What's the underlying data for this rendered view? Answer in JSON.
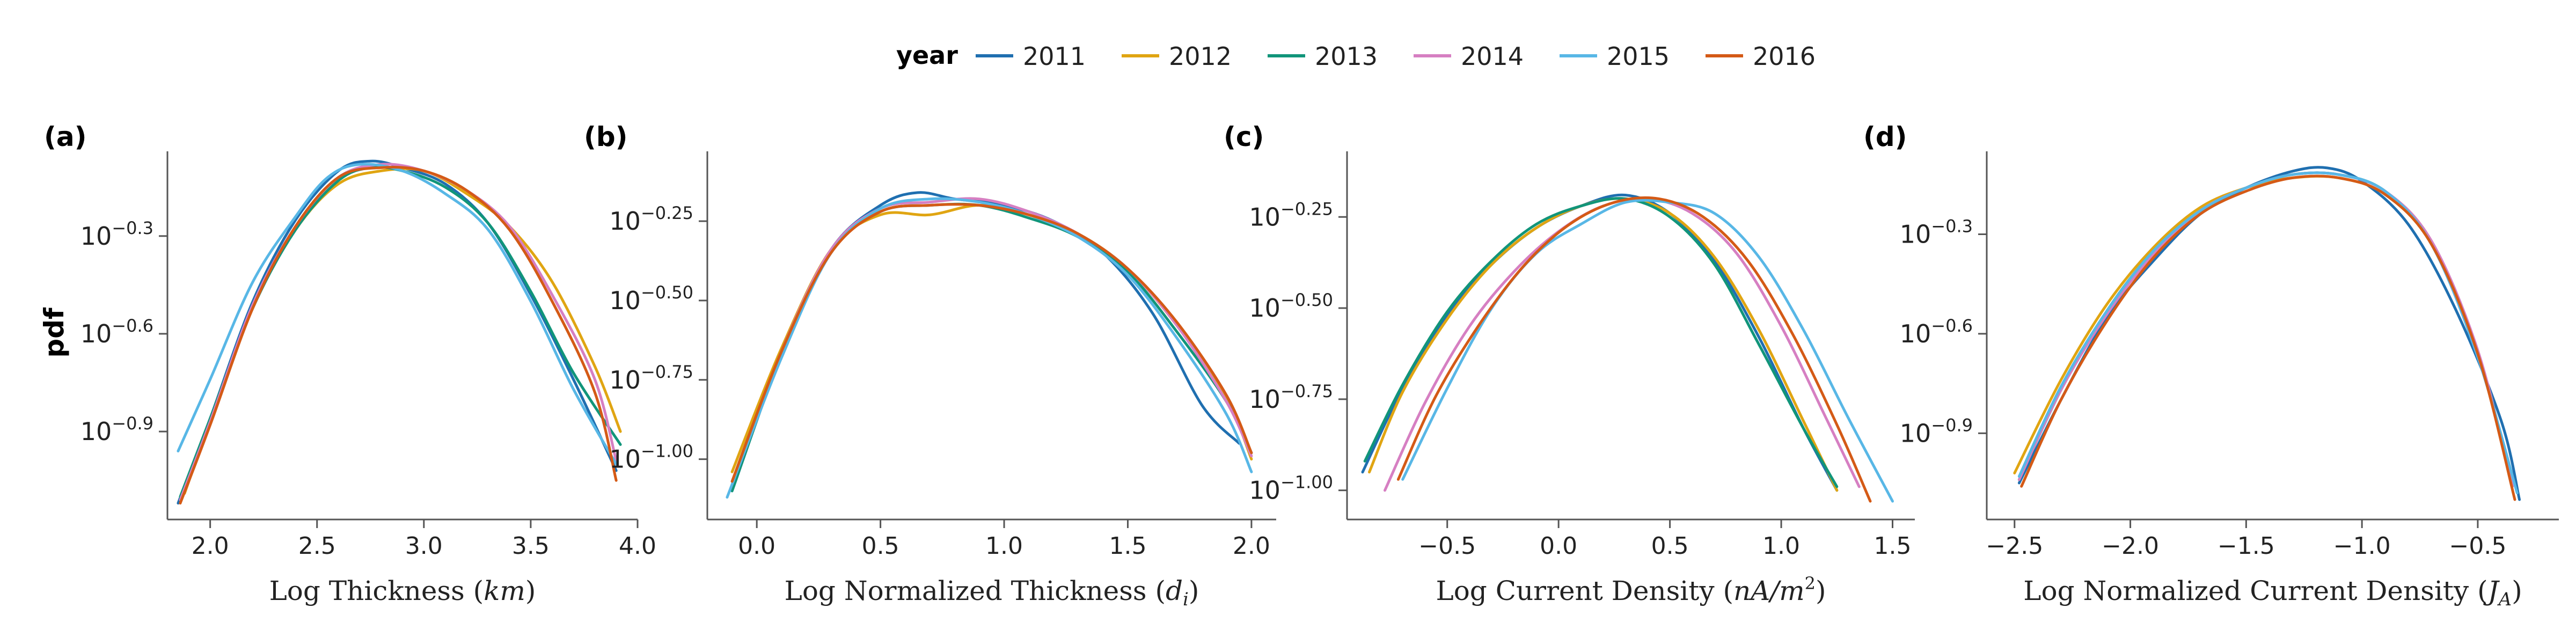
{
  "figure": {
    "y_label": "pdf",
    "legend": {
      "title": "year",
      "position": "top-center",
      "entries": [
        {
          "label": "2011",
          "color": "#1f6fb0"
        },
        {
          "label": "2012",
          "color": "#e0a512"
        },
        {
          "label": "2013",
          "color": "#11957a"
        },
        {
          "label": "2014",
          "color": "#d67fc2"
        },
        {
          "label": "2015",
          "color": "#58b7e6"
        },
        {
          "label": "2016",
          "color": "#d45a16"
        }
      ]
    }
  },
  "chart_data": [
    {
      "type": "line",
      "panel": "(a)",
      "xlabel_text": "Log Thickness (",
      "xlabel_math": "km",
      "xlabel_tail": ")",
      "xlim": [
        1.8,
        4.0
      ],
      "ylim": [
        -1.17,
        -0.04
      ],
      "y_scale": "log",
      "xticks": [
        2.0,
        2.5,
        3.0,
        3.5,
        4.0
      ],
      "xtick_labels": [
        "2.0",
        "2.5",
        "3.0",
        "3.5",
        "4.0"
      ],
      "yticks": [
        -0.3,
        -0.6,
        -0.9
      ],
      "ytick_labels": [
        "−0.3",
        "−0.6",
        "−0.9"
      ],
      "grid": false,
      "series": [
        {
          "name": "2011",
          "x": [
            1.85,
            2.0,
            2.2,
            2.4,
            2.6,
            2.75,
            2.9,
            3.1,
            3.3,
            3.5,
            3.7,
            3.9
          ],
          "y": [
            -1.12,
            -0.86,
            -0.5,
            -0.25,
            -0.1,
            -0.07,
            -0.09,
            -0.14,
            -0.26,
            -0.48,
            -0.74,
            -1.02
          ]
        },
        {
          "name": "2012",
          "x": [
            1.88,
            2.0,
            2.2,
            2.4,
            2.6,
            2.8,
            3.0,
            3.2,
            3.4,
            3.6,
            3.8,
            3.92
          ],
          "y": [
            -1.09,
            -0.87,
            -0.52,
            -0.28,
            -0.14,
            -0.1,
            -0.1,
            -0.17,
            -0.27,
            -0.44,
            -0.7,
            -0.9
          ]
        },
        {
          "name": "2013",
          "x": [
            1.86,
            2.0,
            2.2,
            2.4,
            2.6,
            2.75,
            2.9,
            3.1,
            3.3,
            3.5,
            3.7,
            3.92
          ],
          "y": [
            -1.1,
            -0.86,
            -0.52,
            -0.28,
            -0.13,
            -0.09,
            -0.1,
            -0.15,
            -0.26,
            -0.47,
            -0.72,
            -0.94
          ]
        },
        {
          "name": "2014",
          "x": [
            1.86,
            2.0,
            2.2,
            2.4,
            2.6,
            2.8,
            3.0,
            3.2,
            3.4,
            3.6,
            3.8,
            3.9
          ],
          "y": [
            -1.11,
            -0.87,
            -0.51,
            -0.27,
            -0.12,
            -0.08,
            -0.1,
            -0.16,
            -0.27,
            -0.48,
            -0.74,
            -0.99
          ]
        },
        {
          "name": "2015",
          "x": [
            1.85,
            2.0,
            2.2,
            2.4,
            2.55,
            2.7,
            2.9,
            3.1,
            3.3,
            3.5,
            3.7,
            3.9
          ],
          "y": [
            -0.96,
            -0.74,
            -0.44,
            -0.24,
            -0.12,
            -0.08,
            -0.1,
            -0.17,
            -0.28,
            -0.5,
            -0.77,
            -1.0
          ]
        },
        {
          "name": "2016",
          "x": [
            1.86,
            2.0,
            2.2,
            2.4,
            2.6,
            2.8,
            3.0,
            3.2,
            3.4,
            3.6,
            3.8,
            3.9
          ],
          "y": [
            -1.12,
            -0.88,
            -0.52,
            -0.27,
            -0.12,
            -0.09,
            -0.1,
            -0.16,
            -0.28,
            -0.5,
            -0.78,
            -1.05
          ]
        }
      ]
    },
    {
      "type": "line",
      "panel": "(b)",
      "xlabel_text": "Log Normalized Thickness (",
      "xlabel_math": "d",
      "xlabel_sub": "i",
      "xlabel_tail": ")",
      "xlim": [
        -0.2,
        2.1
      ],
      "ylim": [
        -1.19,
        -0.03
      ],
      "y_scale": "log",
      "xticks": [
        0.0,
        0.5,
        1.0,
        1.5,
        2.0
      ],
      "xtick_labels": [
        "0.0",
        "0.5",
        "1.0",
        "1.5",
        "2.0"
      ],
      "yticks": [
        -0.25,
        -0.5,
        -0.75,
        -1.0
      ],
      "ytick_labels": [
        "−0.25",
        "−0.50",
        "−0.75",
        "−1.00"
      ],
      "grid": false,
      "series": [
        {
          "name": "2011",
          "x": [
            -0.1,
            0.1,
            0.3,
            0.5,
            0.65,
            0.8,
            1.0,
            1.2,
            1.4,
            1.6,
            1.8,
            1.95
          ],
          "y": [
            -1.1,
            -0.67,
            -0.34,
            -0.2,
            -0.16,
            -0.18,
            -0.2,
            -0.25,
            -0.35,
            -0.54,
            -0.83,
            -0.95
          ]
        },
        {
          "name": "2012",
          "x": [
            -0.1,
            0.1,
            0.3,
            0.5,
            0.7,
            0.9,
            1.1,
            1.3,
            1.5,
            1.7,
            1.9,
            2.0
          ],
          "y": [
            -1.04,
            -0.65,
            -0.34,
            -0.23,
            -0.23,
            -0.2,
            -0.23,
            -0.29,
            -0.4,
            -0.58,
            -0.81,
            -1.0
          ]
        },
        {
          "name": "2013",
          "x": [
            -0.1,
            0.1,
            0.3,
            0.5,
            0.7,
            0.9,
            1.1,
            1.3,
            1.5,
            1.7,
            1.9,
            2.0
          ],
          "y": [
            -1.1,
            -0.67,
            -0.35,
            -0.22,
            -0.2,
            -0.2,
            -0.24,
            -0.3,
            -0.41,
            -0.6,
            -0.82,
            -0.98
          ]
        },
        {
          "name": "2014",
          "x": [
            -0.1,
            0.1,
            0.3,
            0.5,
            0.7,
            0.9,
            1.1,
            1.3,
            1.5,
            1.7,
            1.9,
            2.0
          ],
          "y": [
            -1.08,
            -0.66,
            -0.34,
            -0.21,
            -0.19,
            -0.18,
            -0.22,
            -0.29,
            -0.4,
            -0.58,
            -0.82,
            -0.99
          ]
        },
        {
          "name": "2015",
          "x": [
            -0.12,
            0.1,
            0.3,
            0.5,
            0.7,
            0.9,
            1.1,
            1.3,
            1.5,
            1.7,
            1.9,
            2.0
          ],
          "y": [
            -1.12,
            -0.68,
            -0.35,
            -0.21,
            -0.18,
            -0.19,
            -0.23,
            -0.3,
            -0.42,
            -0.62,
            -0.86,
            -1.04
          ]
        },
        {
          "name": "2016",
          "x": [
            -0.1,
            0.1,
            0.3,
            0.5,
            0.7,
            0.9,
            1.1,
            1.3,
            1.5,
            1.7,
            1.9,
            2.0
          ],
          "y": [
            -1.07,
            -0.66,
            -0.35,
            -0.22,
            -0.2,
            -0.2,
            -0.23,
            -0.29,
            -0.4,
            -0.57,
            -0.8,
            -0.98
          ]
        }
      ]
    },
    {
      "type": "line",
      "panel": "(c)",
      "xlabel_text": "Log Current Density (",
      "xlabel_math": "nA/m",
      "xlabel_sup": "2",
      "xlabel_tail": ")",
      "xlim": [
        -0.95,
        1.6
      ],
      "ylim": [
        -1.08,
        -0.07
      ],
      "y_scale": "log",
      "xticks": [
        -0.5,
        0.0,
        0.5,
        1.0,
        1.5
      ],
      "xtick_labels": [
        "−0.5",
        "0.0",
        "0.5",
        "1.0",
        "1.5"
      ],
      "yticks": [
        -0.25,
        -0.5,
        -0.75,
        -1.0
      ],
      "ytick_labels": [
        "−0.25",
        "−0.50",
        "−0.75",
        "−1.00"
      ],
      "grid": false,
      "series": [
        {
          "name": "2011",
          "x": [
            -0.88,
            -0.7,
            -0.5,
            -0.3,
            -0.1,
            0.1,
            0.3,
            0.5,
            0.7,
            0.9,
            1.1,
            1.25
          ],
          "y": [
            -0.95,
            -0.72,
            -0.52,
            -0.38,
            -0.28,
            -0.22,
            -0.19,
            -0.24,
            -0.37,
            -0.58,
            -0.83,
            -1.0
          ]
        },
        {
          "name": "2012",
          "x": [
            -0.85,
            -0.7,
            -0.5,
            -0.3,
            -0.1,
            0.1,
            0.3,
            0.5,
            0.7,
            0.9,
            1.1,
            1.25
          ],
          "y": [
            -0.95,
            -0.73,
            -0.53,
            -0.38,
            -0.28,
            -0.22,
            -0.2,
            -0.24,
            -0.36,
            -0.56,
            -0.81,
            -1.0
          ]
        },
        {
          "name": "2013",
          "x": [
            -0.87,
            -0.7,
            -0.5,
            -0.3,
            -0.1,
            0.1,
            0.3,
            0.5,
            0.7,
            0.9,
            1.1,
            1.25
          ],
          "y": [
            -0.92,
            -0.71,
            -0.51,
            -0.37,
            -0.27,
            -0.22,
            -0.2,
            -0.25,
            -0.38,
            -0.6,
            -0.83,
            -0.99
          ]
        },
        {
          "name": "2014",
          "x": [
            -0.78,
            -0.6,
            -0.4,
            -0.2,
            0.0,
            0.2,
            0.4,
            0.6,
            0.8,
            1.0,
            1.2,
            1.35
          ],
          "y": [
            -1.0,
            -0.76,
            -0.55,
            -0.4,
            -0.29,
            -0.22,
            -0.2,
            -0.24,
            -0.35,
            -0.55,
            -0.8,
            -0.99
          ]
        },
        {
          "name": "2015",
          "x": [
            -0.7,
            -0.5,
            -0.3,
            -0.1,
            0.1,
            0.3,
            0.5,
            0.7,
            0.9,
            1.1,
            1.3,
            1.5
          ],
          "y": [
            -0.97,
            -0.72,
            -0.5,
            -0.35,
            -0.27,
            -0.21,
            -0.21,
            -0.24,
            -0.36,
            -0.56,
            -0.8,
            -1.03
          ]
        },
        {
          "name": "2016",
          "x": [
            -0.72,
            -0.55,
            -0.35,
            -0.15,
            0.05,
            0.25,
            0.45,
            0.65,
            0.85,
            1.05,
            1.25,
            1.4
          ],
          "y": [
            -0.97,
            -0.74,
            -0.54,
            -0.38,
            -0.27,
            -0.21,
            -0.2,
            -0.25,
            -0.37,
            -0.57,
            -0.82,
            -1.03
          ]
        }
      ]
    },
    {
      "type": "line",
      "panel": "(d)",
      "xlabel_text": "Log Normalized Current Density (",
      "xlabel_math": "J",
      "xlabel_sub": "A",
      "xlabel_tail": ")",
      "xlim": [
        -2.62,
        -0.15
      ],
      "ylim": [
        -1.16,
        -0.05
      ],
      "y_scale": "log",
      "xticks": [
        -2.5,
        -2.0,
        -1.5,
        -1.0,
        -0.5
      ],
      "xtick_labels": [
        "−2.5",
        "−2.0",
        "−1.5",
        "−1.0",
        "−0.5"
      ],
      "yticks": [
        -0.3,
        -0.6,
        -0.9
      ],
      "ytick_labels": [
        "−0.3",
        "−0.6",
        "−0.9"
      ],
      "grid": false,
      "series": [
        {
          "name": "2011",
          "x": [
            -2.48,
            -2.3,
            -2.1,
            -1.9,
            -1.7,
            -1.5,
            -1.3,
            -1.15,
            -1.0,
            -0.8,
            -0.6,
            -0.4,
            -0.32
          ],
          "y": [
            -1.05,
            -0.8,
            -0.55,
            -0.38,
            -0.24,
            -0.16,
            -0.11,
            -0.1,
            -0.14,
            -0.27,
            -0.52,
            -0.86,
            -1.1
          ]
        },
        {
          "name": "2012",
          "x": [
            -2.5,
            -2.3,
            -2.1,
            -1.9,
            -1.7,
            -1.5,
            -1.3,
            -1.1,
            -0.9,
            -0.7,
            -0.5,
            -0.35
          ],
          "y": [
            -1.02,
            -0.74,
            -0.51,
            -0.34,
            -0.22,
            -0.16,
            -0.13,
            -0.13,
            -0.18,
            -0.33,
            -0.66,
            -1.05
          ]
        },
        {
          "name": "2013",
          "x": [
            -2.48,
            -2.3,
            -2.1,
            -1.9,
            -1.7,
            -1.5,
            -1.3,
            -1.1,
            -0.9,
            -0.7,
            -0.5,
            -0.35
          ],
          "y": [
            -1.04,
            -0.77,
            -0.53,
            -0.35,
            -0.23,
            -0.16,
            -0.12,
            -0.12,
            -0.17,
            -0.33,
            -0.66,
            -1.05
          ]
        },
        {
          "name": "2014",
          "x": [
            -2.48,
            -2.3,
            -2.1,
            -1.9,
            -1.7,
            -1.5,
            -1.3,
            -1.1,
            -0.9,
            -0.7,
            -0.5,
            -0.35
          ],
          "y": [
            -1.04,
            -0.77,
            -0.54,
            -0.36,
            -0.23,
            -0.16,
            -0.12,
            -0.12,
            -0.17,
            -0.32,
            -0.65,
            -1.06
          ]
        },
        {
          "name": "2015",
          "x": [
            -2.48,
            -2.3,
            -2.1,
            -1.9,
            -1.7,
            -1.5,
            -1.3,
            -1.1,
            -0.9,
            -0.7,
            -0.5,
            -0.33
          ],
          "y": [
            -1.03,
            -0.76,
            -0.53,
            -0.35,
            -0.23,
            -0.16,
            -0.12,
            -0.12,
            -0.17,
            -0.33,
            -0.67,
            -1.08
          ]
        },
        {
          "name": "2016",
          "x": [
            -2.47,
            -2.3,
            -2.1,
            -1.9,
            -1.7,
            -1.5,
            -1.3,
            -1.1,
            -0.9,
            -0.7,
            -0.5,
            -0.34
          ],
          "y": [
            -1.06,
            -0.8,
            -0.56,
            -0.37,
            -0.24,
            -0.17,
            -0.13,
            -0.13,
            -0.18,
            -0.33,
            -0.66,
            -1.1
          ]
        }
      ]
    }
  ]
}
